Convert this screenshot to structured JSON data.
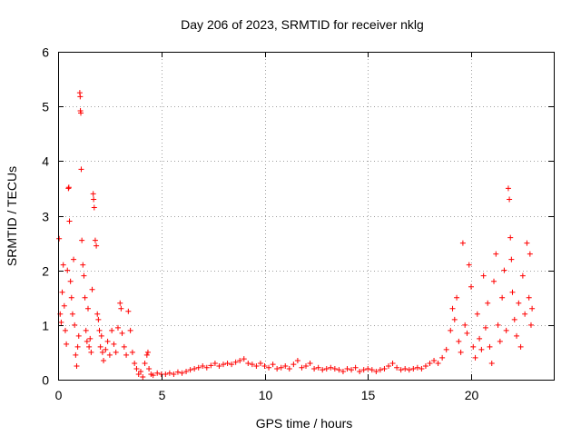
{
  "chart_data": {
    "type": "scatter",
    "title": "Day 206 of 2023, SRMTID for receiver nklg",
    "xlabel": "GPS time / hours",
    "ylabel": "SRMTID / TECUs",
    "xlim": [
      0,
      24
    ],
    "ylim": [
      0,
      6
    ],
    "xticks": [
      0,
      5,
      10,
      15,
      20
    ],
    "yticks": [
      0,
      1,
      2,
      3,
      4,
      5,
      6
    ],
    "grid": true,
    "marker": "plus",
    "color": "#ff0000",
    "series": [
      {
        "name": "SRMTID",
        "points": [
          [
            0.05,
            2.58
          ],
          [
            0.1,
            1.2
          ],
          [
            0.15,
            1.05
          ],
          [
            0.2,
            1.6
          ],
          [
            0.25,
            2.1
          ],
          [
            0.3,
            1.35
          ],
          [
            0.35,
            0.9
          ],
          [
            0.4,
            0.65
          ],
          [
            0.45,
            2.0
          ],
          [
            0.5,
            3.5
          ],
          [
            0.52,
            3.52
          ],
          [
            0.55,
            2.9
          ],
          [
            0.6,
            1.8
          ],
          [
            0.65,
            1.5
          ],
          [
            0.7,
            1.2
          ],
          [
            0.75,
            2.2
          ],
          [
            0.8,
            1.0
          ],
          [
            0.85,
            0.45
          ],
          [
            0.9,
            0.25
          ],
          [
            0.95,
            0.6
          ],
          [
            1.0,
            0.8
          ],
          [
            1.05,
            5.25
          ],
          [
            1.07,
            5.18
          ],
          [
            1.08,
            4.92
          ],
          [
            1.1,
            4.88
          ],
          [
            1.12,
            3.85
          ],
          [
            1.15,
            2.55
          ],
          [
            1.2,
            2.1
          ],
          [
            1.25,
            1.9
          ],
          [
            1.3,
            1.5
          ],
          [
            1.35,
            0.9
          ],
          [
            1.4,
            0.7
          ],
          [
            1.45,
            1.3
          ],
          [
            1.5,
            0.6
          ],
          [
            1.55,
            0.75
          ],
          [
            1.6,
            0.5
          ],
          [
            1.65,
            1.65
          ],
          [
            1.7,
            3.4
          ],
          [
            1.72,
            3.3
          ],
          [
            1.75,
            3.15
          ],
          [
            1.8,
            2.55
          ],
          [
            1.85,
            2.45
          ],
          [
            1.9,
            1.2
          ],
          [
            1.95,
            1.1
          ],
          [
            2.0,
            0.9
          ],
          [
            2.05,
            0.6
          ],
          [
            2.1,
            0.8
          ],
          [
            2.15,
            0.5
          ],
          [
            2.2,
            0.35
          ],
          [
            2.3,
            0.55
          ],
          [
            2.4,
            0.7
          ],
          [
            2.5,
            0.45
          ],
          [
            2.6,
            0.9
          ],
          [
            2.7,
            0.65
          ],
          [
            2.8,
            0.5
          ],
          [
            2.9,
            0.95
          ],
          [
            3.0,
            1.4
          ],
          [
            3.05,
            1.3
          ],
          [
            3.1,
            0.85
          ],
          [
            3.2,
            0.6
          ],
          [
            3.3,
            0.45
          ],
          [
            3.4,
            1.25
          ],
          [
            3.5,
            0.9
          ],
          [
            3.6,
            0.5
          ],
          [
            3.7,
            0.3
          ],
          [
            3.8,
            0.2
          ],
          [
            3.9,
            0.1
          ],
          [
            4.0,
            0.15
          ],
          [
            4.1,
            0.05
          ],
          [
            4.2,
            0.3
          ],
          [
            4.3,
            0.45
          ],
          [
            4.35,
            0.5
          ],
          [
            4.4,
            0.2
          ],
          [
            4.5,
            0.1
          ],
          [
            4.6,
            0.08
          ],
          [
            4.8,
            0.12
          ],
          [
            5.0,
            0.1
          ],
          [
            5.2,
            0.1
          ],
          [
            5.4,
            0.12
          ],
          [
            5.6,
            0.1
          ],
          [
            5.8,
            0.14
          ],
          [
            6.0,
            0.12
          ],
          [
            6.2,
            0.15
          ],
          [
            6.4,
            0.18
          ],
          [
            6.6,
            0.2
          ],
          [
            6.8,
            0.22
          ],
          [
            7.0,
            0.25
          ],
          [
            7.2,
            0.22
          ],
          [
            7.4,
            0.26
          ],
          [
            7.6,
            0.3
          ],
          [
            7.8,
            0.25
          ],
          [
            8.0,
            0.28
          ],
          [
            8.2,
            0.3
          ],
          [
            8.4,
            0.28
          ],
          [
            8.6,
            0.32
          ],
          [
            8.8,
            0.35
          ],
          [
            9.0,
            0.38
          ],
          [
            9.2,
            0.3
          ],
          [
            9.4,
            0.28
          ],
          [
            9.6,
            0.25
          ],
          [
            9.8,
            0.3
          ],
          [
            10.0,
            0.25
          ],
          [
            10.2,
            0.22
          ],
          [
            10.4,
            0.28
          ],
          [
            10.6,
            0.2
          ],
          [
            10.8,
            0.22
          ],
          [
            11.0,
            0.25
          ],
          [
            11.2,
            0.2
          ],
          [
            11.4,
            0.28
          ],
          [
            11.6,
            0.35
          ],
          [
            11.8,
            0.22
          ],
          [
            12.0,
            0.25
          ],
          [
            12.2,
            0.3
          ],
          [
            12.4,
            0.2
          ],
          [
            12.6,
            0.22
          ],
          [
            12.8,
            0.18
          ],
          [
            13.0,
            0.2
          ],
          [
            13.2,
            0.22
          ],
          [
            13.4,
            0.2
          ],
          [
            13.6,
            0.18
          ],
          [
            13.8,
            0.15
          ],
          [
            14.0,
            0.2
          ],
          [
            14.2,
            0.18
          ],
          [
            14.4,
            0.22
          ],
          [
            14.6,
            0.15
          ],
          [
            14.8,
            0.18
          ],
          [
            15.0,
            0.2
          ],
          [
            15.2,
            0.18
          ],
          [
            15.4,
            0.15
          ],
          [
            15.6,
            0.18
          ],
          [
            15.8,
            0.2
          ],
          [
            16.0,
            0.25
          ],
          [
            16.2,
            0.3
          ],
          [
            16.4,
            0.22
          ],
          [
            16.6,
            0.18
          ],
          [
            16.8,
            0.2
          ],
          [
            17.0,
            0.18
          ],
          [
            17.2,
            0.2
          ],
          [
            17.4,
            0.22
          ],
          [
            17.6,
            0.2
          ],
          [
            17.8,
            0.25
          ],
          [
            18.0,
            0.3
          ],
          [
            18.2,
            0.35
          ],
          [
            18.4,
            0.3
          ],
          [
            18.6,
            0.4
          ],
          [
            18.8,
            0.55
          ],
          [
            19.0,
            0.9
          ],
          [
            19.1,
            1.3
          ],
          [
            19.2,
            1.1
          ],
          [
            19.3,
            1.5
          ],
          [
            19.4,
            0.7
          ],
          [
            19.5,
            0.5
          ],
          [
            19.6,
            2.5
          ],
          [
            19.7,
            1.0
          ],
          [
            19.8,
            0.85
          ],
          [
            19.9,
            2.1
          ],
          [
            20.0,
            1.7
          ],
          [
            20.1,
            0.6
          ],
          [
            20.2,
            0.4
          ],
          [
            20.3,
            1.2
          ],
          [
            20.4,
            0.75
          ],
          [
            20.5,
            0.55
          ],
          [
            20.6,
            1.9
          ],
          [
            20.7,
            0.95
          ],
          [
            20.8,
            1.4
          ],
          [
            20.9,
            0.6
          ],
          [
            21.0,
            0.3
          ],
          [
            21.1,
            1.8
          ],
          [
            21.2,
            2.3
          ],
          [
            21.3,
            1.0
          ],
          [
            21.4,
            0.7
          ],
          [
            21.5,
            1.5
          ],
          [
            21.6,
            2.0
          ],
          [
            21.7,
            0.9
          ],
          [
            21.8,
            3.5
          ],
          [
            21.85,
            3.3
          ],
          [
            21.9,
            2.6
          ],
          [
            21.95,
            2.2
          ],
          [
            22.0,
            1.6
          ],
          [
            22.1,
            1.1
          ],
          [
            22.2,
            0.8
          ],
          [
            22.3,
            1.4
          ],
          [
            22.4,
            0.6
          ],
          [
            22.5,
            1.9
          ],
          [
            22.6,
            1.2
          ],
          [
            22.7,
            2.5
          ],
          [
            22.8,
            1.5
          ],
          [
            22.85,
            2.3
          ],
          [
            22.9,
            1.0
          ],
          [
            22.95,
            1.3
          ]
        ]
      }
    ]
  }
}
